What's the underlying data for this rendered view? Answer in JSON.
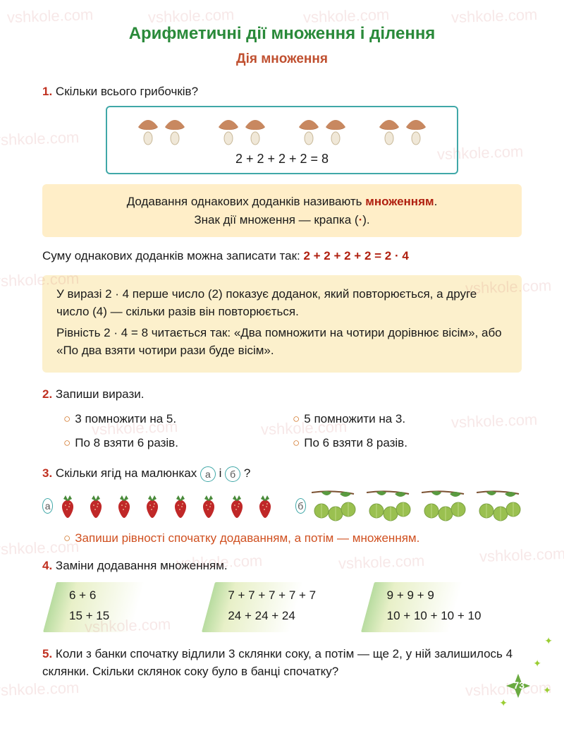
{
  "watermark_text": "vshkole.com",
  "header": {
    "title": "Арифметичні дії множення і ділення",
    "subtitle": "Дія множення",
    "title_color": "#2a8a3a",
    "subtitle_color": "#c05030"
  },
  "ex1": {
    "num": "1.",
    "text": "Скільки всього грибочків?",
    "mushroom": {
      "groups": 4,
      "per_group": 2,
      "cap_color_top": "#c88860",
      "cap_color_bottom": "#a86840",
      "stem_color": "#f0e8d8"
    },
    "equation": "2 + 2 + 2 + 2 = 8",
    "border_color": "#40a8a8"
  },
  "rule_box": {
    "line1a": "Додавання однакових доданків називають ",
    "line1b": "множенням",
    "line1c": ".",
    "line2a": "Знак дії множення — крапка (",
    "dot": "·",
    "line2b": ").",
    "bg_color": "#ffeec8",
    "highlight_color": "#b02010"
  },
  "sum_line": {
    "text": "Суму однакових доданків можна записати так:  ",
    "formula": "2 + 2 + 2 + 2 = 2 · 4"
  },
  "explain_box": {
    "p1": "У виразі 2 · 4 перше число (2) показує доданок, який повторюється, а друге число (4) — скільки разів він повторюється.",
    "p2": "Рівність 2 · 4 = 8 читається так: «Два помножити на чотири дорівнює вісім», або «По два взяти чотири рази буде вісім».",
    "bg_color": "#fcf0cc"
  },
  "ex2": {
    "num": "2.",
    "text": "Запиши вирази.",
    "items": [
      "3 помножити на 5.",
      "5 помножити на 3.",
      "По 8 взяти 6 разів.",
      "По 6 взяти 8 разів."
    ]
  },
  "ex3": {
    "num": "3.",
    "text_a": "Скільки ягід на малюнках ",
    "label_a": "а",
    "text_mid": " і ",
    "label_b": "б",
    "text_end": " ?",
    "strawberry": {
      "count": 8,
      "color": "#c02828",
      "leaf_color": "#4a8a3a"
    },
    "gooseberry": {
      "clusters": 4,
      "per_cluster": 3,
      "color": "#9ac050",
      "leaf_color": "#5a9a40"
    },
    "instruction": "Запиши рівності спочатку додаванням, а потім — множенням."
  },
  "ex4": {
    "num": "4.",
    "text": "Заміни додавання множенням.",
    "col1": [
      "6 + 6",
      "15 + 15"
    ],
    "col2": [
      "7 + 7 + 7 + 7 + 7",
      "24 + 24 + 24"
    ],
    "col3": [
      "9 + 9 + 9",
      "10 + 10 + 10 + 10"
    ],
    "gradient_from": "#b8dca0"
  },
  "ex5": {
    "num": "5.",
    "text": "Коли з банки спочатку відлили 3 склянки соку, а потім — ще 2, у ній залишилось 4 склянки. Скільки склянок соку було в банці спочатку?"
  },
  "page_number": "73",
  "page_badge_color": "#6aaa40"
}
